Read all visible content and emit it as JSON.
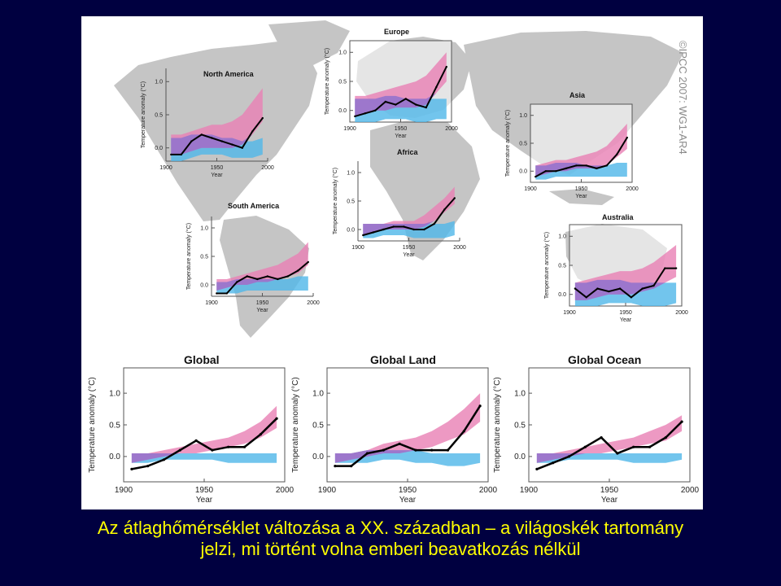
{
  "caption": {
    "line1": "Az átlaghőmérséklet változása a XX. században – a világoskék tartomány",
    "line2": "jelzi, mi történt volna emberi beavatkozás nélkül"
  },
  "watermark": "©IPCC 2007: WG1-AR4",
  "colors": {
    "background": "#000040",
    "caption": "#ffff00",
    "land": "#c5c5c5",
    "ocean": "#ffffff",
    "natural_band": "#4fb7e8",
    "anthropogenic_band": "#e87fb4",
    "observed": "#000000"
  },
  "chart_data": [
    {
      "id": "north-america",
      "type": "line",
      "title": "North America",
      "xlabel": "Year",
      "ylabel": "Temperature anomaly (°C)",
      "xlim": [
        1900,
        2000
      ],
      "ylim": [
        -0.2,
        1.2
      ],
      "xticks": [
        "1900",
        "1950",
        "2000"
      ],
      "yticks": [
        "0.0",
        "0.5",
        "1.0"
      ],
      "x": [
        1905,
        1915,
        1925,
        1935,
        1945,
        1955,
        1965,
        1975,
        1985,
        1995
      ],
      "observed": [
        -0.1,
        -0.1,
        0.1,
        0.2,
        0.15,
        0.1,
        0.05,
        0.0,
        0.25,
        0.45
      ],
      "natural": {
        "low": [
          -0.2,
          -0.2,
          -0.15,
          -0.1,
          -0.1,
          -0.1,
          -0.15,
          -0.15,
          -0.15,
          -0.1
        ],
        "high": [
          0.15,
          0.15,
          0.2,
          0.2,
          0.2,
          0.15,
          0.15,
          0.1,
          0.1,
          0.15
        ]
      },
      "anthropogenic": {
        "low": [
          -0.1,
          -0.1,
          -0.05,
          0.0,
          0.0,
          0.0,
          0.0,
          0.05,
          0.2,
          0.4
        ],
        "high": [
          0.2,
          0.2,
          0.25,
          0.3,
          0.35,
          0.35,
          0.4,
          0.5,
          0.7,
          0.9
        ]
      }
    },
    {
      "id": "europe",
      "type": "line",
      "title": "Europe",
      "xlabel": "Year",
      "ylabel": "Temperature anomaly (°C)",
      "xlim": [
        1900,
        2000
      ],
      "ylim": [
        -0.2,
        1.2
      ],
      "xticks": [
        "1900",
        "1950",
        "2000"
      ],
      "yticks": [
        "0.0",
        "0.5",
        "1.0"
      ],
      "x": [
        1905,
        1915,
        1925,
        1935,
        1945,
        1955,
        1965,
        1975,
        1985,
        1995
      ],
      "observed": [
        -0.1,
        -0.05,
        0.0,
        0.15,
        0.1,
        0.2,
        0.1,
        0.05,
        0.4,
        0.75
      ],
      "natural": {
        "low": [
          -0.2,
          -0.2,
          -0.2,
          -0.15,
          -0.15,
          -0.15,
          -0.2,
          -0.2,
          -0.15,
          -0.15
        ],
        "high": [
          0.2,
          0.2,
          0.2,
          0.25,
          0.25,
          0.2,
          0.2,
          0.2,
          0.2,
          0.2
        ]
      },
      "anthropogenic": {
        "low": [
          -0.1,
          -0.05,
          0.0,
          0.0,
          0.05,
          0.05,
          0.05,
          0.1,
          0.3,
          0.5
        ],
        "high": [
          0.25,
          0.25,
          0.3,
          0.35,
          0.4,
          0.45,
          0.5,
          0.6,
          0.8,
          1.0
        ]
      }
    },
    {
      "id": "asia",
      "type": "line",
      "title": "Asia",
      "xlabel": "Year",
      "ylabel": "Temperature anomaly (°C)",
      "xlim": [
        1900,
        2000
      ],
      "ylim": [
        -0.2,
        1.2
      ],
      "xticks": [
        "1900",
        "1950",
        "2000"
      ],
      "yticks": [
        "0.0",
        "0.5",
        "1.0"
      ],
      "x": [
        1905,
        1915,
        1925,
        1935,
        1945,
        1955,
        1965,
        1975,
        1985,
        1995
      ],
      "observed": [
        -0.1,
        0.0,
        0.0,
        0.05,
        0.1,
        0.1,
        0.05,
        0.1,
        0.3,
        0.6
      ],
      "natural": {
        "low": [
          -0.15,
          -0.15,
          -0.1,
          -0.1,
          -0.1,
          -0.1,
          -0.1,
          -0.1,
          -0.1,
          -0.1
        ],
        "high": [
          0.1,
          0.1,
          0.15,
          0.15,
          0.15,
          0.1,
          0.1,
          0.1,
          0.15,
          0.15
        ]
      },
      "anthropogenic": {
        "low": [
          -0.1,
          -0.05,
          0.0,
          0.0,
          0.05,
          0.05,
          0.05,
          0.1,
          0.25,
          0.4
        ],
        "high": [
          0.1,
          0.15,
          0.2,
          0.2,
          0.25,
          0.3,
          0.35,
          0.45,
          0.65,
          0.85
        ]
      }
    },
    {
      "id": "africa",
      "type": "line",
      "title": "Africa",
      "xlabel": "Year",
      "ylabel": "Temperature anomaly (°C)",
      "xlim": [
        1900,
        2000
      ],
      "ylim": [
        -0.2,
        1.2
      ],
      "xticks": [
        "1900",
        "1950",
        "2000"
      ],
      "yticks": [
        "0.0",
        "0.5",
        "1.0"
      ],
      "x": [
        1905,
        1915,
        1925,
        1935,
        1945,
        1955,
        1965,
        1975,
        1985,
        1995
      ],
      "observed": [
        -0.1,
        -0.05,
        0.0,
        0.05,
        0.05,
        0.0,
        0.0,
        0.1,
        0.35,
        0.55
      ],
      "natural": {
        "low": [
          -0.15,
          -0.15,
          -0.1,
          -0.1,
          -0.1,
          -0.15,
          -0.15,
          -0.15,
          -0.15,
          -0.1
        ],
        "high": [
          0.1,
          0.1,
          0.1,
          0.1,
          0.1,
          0.1,
          0.1,
          0.1,
          0.1,
          0.15
        ]
      },
      "anthropogenic": {
        "low": [
          -0.1,
          -0.05,
          0.0,
          0.0,
          0.0,
          0.0,
          0.05,
          0.15,
          0.3,
          0.45
        ],
        "high": [
          0.1,
          0.1,
          0.1,
          0.15,
          0.15,
          0.15,
          0.25,
          0.4,
          0.55,
          0.75
        ]
      }
    },
    {
      "id": "south-america",
      "type": "line",
      "title": "South America",
      "xlabel": "Year",
      "ylabel": "Temperature anomaly (°C)",
      "xlim": [
        1900,
        2000
      ],
      "ylim": [
        -0.2,
        1.2
      ],
      "xticks": [
        "1900",
        "1950",
        "2000"
      ],
      "yticks": [
        "0.0",
        "0.5",
        "1.0"
      ],
      "x": [
        1905,
        1915,
        1925,
        1935,
        1945,
        1955,
        1965,
        1975,
        1985,
        1995
      ],
      "observed": [
        -0.15,
        -0.15,
        0.05,
        0.15,
        0.1,
        0.15,
        0.1,
        0.15,
        0.25,
        0.4
      ],
      "natural": {
        "low": [
          -0.15,
          -0.15,
          -0.15,
          -0.1,
          -0.1,
          -0.1,
          -0.1,
          -0.1,
          -0.1,
          -0.1
        ],
        "high": [
          0.05,
          0.05,
          0.1,
          0.1,
          0.1,
          0.1,
          0.1,
          0.1,
          0.15,
          0.15
        ]
      },
      "anthropogenic": {
        "low": [
          -0.1,
          -0.05,
          0.0,
          0.0,
          0.05,
          0.05,
          0.1,
          0.15,
          0.2,
          0.35
        ],
        "high": [
          0.1,
          0.1,
          0.15,
          0.2,
          0.25,
          0.3,
          0.35,
          0.45,
          0.55,
          0.75
        ]
      }
    },
    {
      "id": "australia",
      "type": "line",
      "title": "Australia",
      "xlabel": "Year",
      "ylabel": "Temperature anomaly (°C)",
      "xlim": [
        1900,
        2000
      ],
      "ylim": [
        -0.2,
        1.2
      ],
      "xticks": [
        "1900",
        "1950",
        "2000"
      ],
      "yticks": [
        "0.0",
        "0.5",
        "1.0"
      ],
      "x": [
        1905,
        1915,
        1925,
        1935,
        1945,
        1955,
        1965,
        1975,
        1985,
        1995
      ],
      "observed": [
        0.1,
        -0.05,
        0.1,
        0.05,
        0.1,
        -0.05,
        0.1,
        0.15,
        0.45,
        0.45
      ],
      "natural": {
        "low": [
          -0.2,
          -0.2,
          -0.2,
          -0.15,
          -0.15,
          -0.15,
          -0.2,
          -0.2,
          -0.2,
          -0.15
        ],
        "high": [
          0.2,
          0.2,
          0.25,
          0.25,
          0.25,
          0.2,
          0.2,
          0.2,
          0.2,
          0.2
        ]
      },
      "anthropogenic": {
        "low": [
          -0.1,
          -0.1,
          -0.05,
          0.0,
          0.0,
          0.0,
          0.05,
          0.1,
          0.2,
          0.3
        ],
        "high": [
          0.2,
          0.25,
          0.3,
          0.35,
          0.4,
          0.4,
          0.45,
          0.55,
          0.7,
          0.85
        ]
      }
    },
    {
      "id": "global",
      "type": "line",
      "title": "Global",
      "xlabel": "Year",
      "ylabel": "Temperature anomaly (°C)",
      "xlim": [
        1900,
        2000
      ],
      "ylim": [
        -0.4,
        1.4
      ],
      "xticks": [
        "1900",
        "1950",
        "2000"
      ],
      "yticks": [
        "0.0",
        "0.5",
        "1.0"
      ],
      "x": [
        1905,
        1915,
        1925,
        1935,
        1945,
        1955,
        1965,
        1975,
        1985,
        1995
      ],
      "observed": [
        -0.2,
        -0.15,
        -0.05,
        0.1,
        0.25,
        0.1,
        0.15,
        0.15,
        0.35,
        0.6
      ],
      "natural": {
        "low": [
          -0.1,
          -0.1,
          -0.05,
          -0.05,
          -0.05,
          -0.05,
          -0.1,
          -0.1,
          -0.1,
          -0.1
        ],
        "high": [
          0.05,
          0.05,
          0.05,
          0.05,
          0.05,
          0.05,
          0.05,
          0.05,
          0.05,
          0.05
        ]
      },
      "anthropogenic": {
        "low": [
          -0.1,
          -0.05,
          0.0,
          0.05,
          0.05,
          0.1,
          0.15,
          0.2,
          0.3,
          0.45
        ],
        "high": [
          0.05,
          0.05,
          0.1,
          0.15,
          0.2,
          0.25,
          0.3,
          0.4,
          0.55,
          0.8
        ]
      }
    },
    {
      "id": "global-land",
      "type": "line",
      "title": "Global Land",
      "xlabel": "Year",
      "ylabel": "Temperature anomaly (°C)",
      "xlim": [
        1900,
        2000
      ],
      "ylim": [
        -0.4,
        1.4
      ],
      "xticks": [
        "1900",
        "1950",
        "2000"
      ],
      "yticks": [
        "0.0",
        "0.5",
        "1.0"
      ],
      "x": [
        1905,
        1915,
        1925,
        1935,
        1945,
        1955,
        1965,
        1975,
        1985,
        1995
      ],
      "observed": [
        -0.15,
        -0.15,
        0.05,
        0.1,
        0.2,
        0.1,
        0.1,
        0.1,
        0.4,
        0.8
      ],
      "natural": {
        "low": [
          -0.1,
          -0.1,
          -0.1,
          -0.05,
          -0.05,
          -0.1,
          -0.1,
          -0.15,
          -0.15,
          -0.1
        ],
        "high": [
          0.05,
          0.05,
          0.1,
          0.1,
          0.1,
          0.1,
          0.05,
          0.05,
          0.05,
          0.05
        ]
      },
      "anthropogenic": {
        "low": [
          -0.1,
          -0.05,
          0.0,
          0.05,
          0.05,
          0.1,
          0.15,
          0.25,
          0.35,
          0.55
        ],
        "high": [
          0.05,
          0.05,
          0.1,
          0.2,
          0.25,
          0.3,
          0.4,
          0.55,
          0.75,
          1.0
        ]
      }
    },
    {
      "id": "global-ocean",
      "type": "line",
      "title": "Global Ocean",
      "xlabel": "Year",
      "ylabel": "Temperature anomaly (°C)",
      "xlim": [
        1900,
        2000
      ],
      "ylim": [
        -0.4,
        1.4
      ],
      "xticks": [
        "1900",
        "1950",
        "2000"
      ],
      "yticks": [
        "0.0",
        "0.5",
        "1.0"
      ],
      "x": [
        1905,
        1915,
        1925,
        1935,
        1945,
        1955,
        1965,
        1975,
        1985,
        1995
      ],
      "observed": [
        -0.2,
        -0.1,
        0.0,
        0.15,
        0.3,
        0.05,
        0.15,
        0.15,
        0.3,
        0.55
      ],
      "natural": {
        "low": [
          -0.1,
          -0.1,
          -0.05,
          -0.05,
          -0.05,
          -0.05,
          -0.1,
          -0.1,
          -0.1,
          -0.05
        ],
        "high": [
          0.05,
          0.05,
          0.05,
          0.05,
          0.05,
          0.05,
          0.05,
          0.05,
          0.05,
          0.05
        ]
      },
      "anthropogenic": {
        "low": [
          -0.1,
          -0.05,
          0.0,
          0.05,
          0.05,
          0.1,
          0.15,
          0.2,
          0.25,
          0.4
        ],
        "high": [
          0.05,
          0.05,
          0.1,
          0.15,
          0.2,
          0.25,
          0.3,
          0.4,
          0.5,
          0.65
        ]
      }
    }
  ]
}
